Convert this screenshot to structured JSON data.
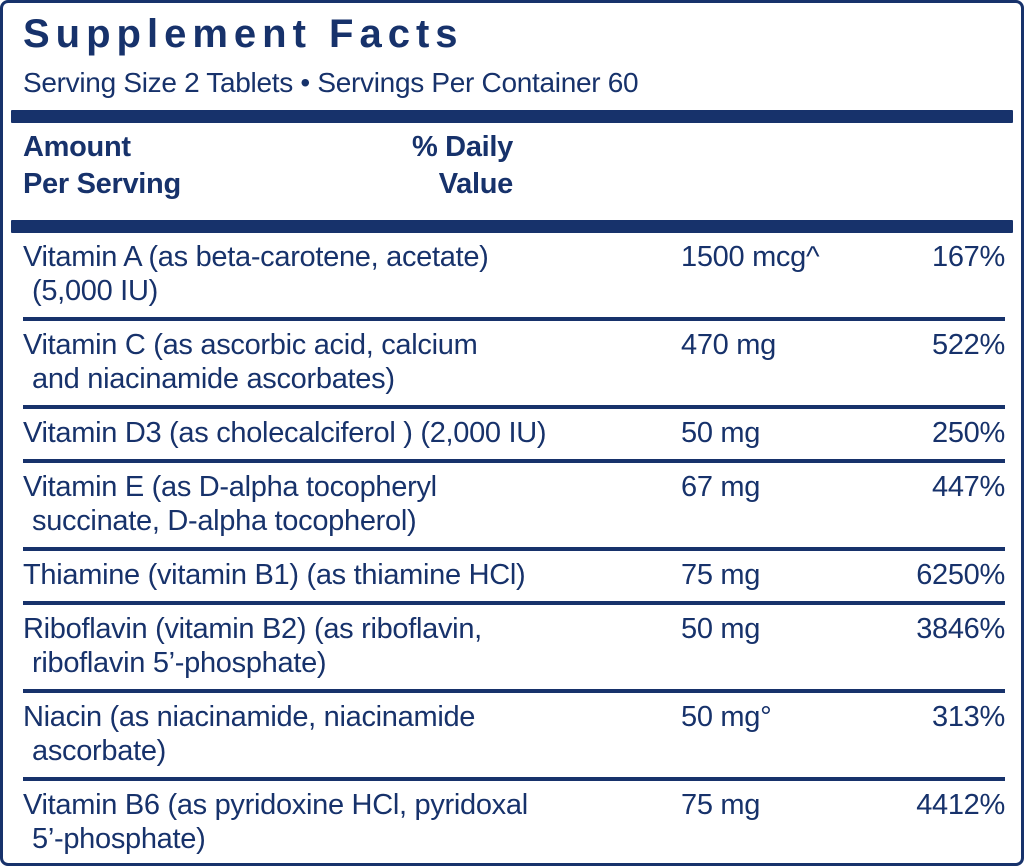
{
  "colors": {
    "navy": "#17326b",
    "background": "#ffffff"
  },
  "header": {
    "title": "Supplement Facts",
    "serving_info": "Serving Size 2 Tablets • Servings Per Container 60"
  },
  "table": {
    "col_amount_line1": "Amount",
    "col_amount_line2": "Per Serving",
    "col_dv_line1": "% Daily",
    "col_dv_line2": "Value",
    "rows": [
      {
        "name": "Vitamin A (as beta-carotene, acetate)",
        "name2": "(5,000 IU)",
        "amount": "1500 mcg^",
        "dv": "167%"
      },
      {
        "name": "Vitamin C (as ascorbic acid, calcium",
        "name2": "and niacinamide ascorbates)",
        "amount": "470 mg",
        "dv": "522%"
      },
      {
        "name": "Vitamin D3 (as cholecalciferol ) (2,000 IU)",
        "name2": "",
        "amount": "50 mg",
        "dv": "250%"
      },
      {
        "name": "Vitamin E (as D-alpha tocopheryl",
        "name2": "succinate, D-alpha tocopherol)",
        "amount": "67 mg",
        "dv": "447%"
      },
      {
        "name": "Thiamine (vitamin B1) (as thiamine HCl)",
        "name2": "",
        "amount": "75 mg",
        "dv": "6250%"
      },
      {
        "name": "Riboflavin (vitamin B2) (as riboflavin,",
        "name2": "riboflavin 5’-phosphate)",
        "amount": "50 mg",
        "dv": "3846%"
      },
      {
        "name": "Niacin (as niacinamide, niacinamide",
        "name2": "ascorbate)",
        "amount": "50 mg°",
        "dv": "313%"
      },
      {
        "name": "Vitamin B6 (as pyridoxine HCl, pyridoxal",
        "name2": "5’-phosphate)",
        "amount": "75 mg",
        "dv": "4412%"
      }
    ]
  }
}
